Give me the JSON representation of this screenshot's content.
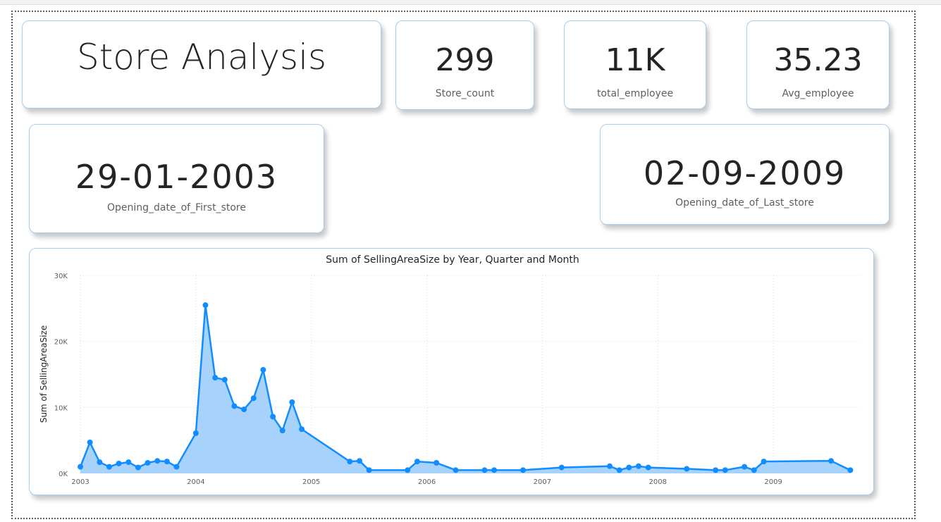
{
  "title": "Store Analysis",
  "kpis": {
    "store_count": {
      "value": "299",
      "label": "Store_count"
    },
    "total_employee": {
      "value": "11K",
      "label": "total_employee"
    },
    "avg_employee": {
      "value": "35.23",
      "label": "Avg_employee"
    }
  },
  "dates": {
    "first": {
      "value": "29-01-2003",
      "label": "Opening_date_of_First_store"
    },
    "last": {
      "value": "02-09-2009",
      "label": "Opening_date_of_Last_store"
    }
  },
  "colors": {
    "accent": "#118dff",
    "fill": "#a6d2fb",
    "border": "#a9cdf0"
  },
  "chart_data": {
    "type": "area",
    "title": "Sum of SellingAreaSize by Year, Quarter and Month",
    "ylabel": "Sum of SellingAreaSize",
    "xlabel": "",
    "ylim": [
      0,
      30000
    ],
    "yticks": [
      0,
      10000,
      20000,
      30000
    ],
    "ytick_labels": [
      "0K",
      "10K",
      "20K",
      "30K"
    ],
    "xlim": [
      2003.0,
      2009.75
    ],
    "xticks": [
      2003,
      2004,
      2005,
      2006,
      2007,
      2008,
      2009
    ],
    "xtick_labels": [
      "2003",
      "2004",
      "2005",
      "2006",
      "2007",
      "2008",
      "2009"
    ],
    "grid": true,
    "series": [
      {
        "x": [
          2003.0,
          2003.083,
          2003.167,
          2003.25,
          2003.333,
          2003.417,
          2003.5,
          2003.583,
          2003.667,
          2003.75,
          2003.833,
          2004.0,
          2004.083,
          2004.167,
          2004.25,
          2004.333,
          2004.417,
          2004.5,
          2004.583,
          2004.667,
          2004.75,
          2004.833,
          2004.917,
          2005.333,
          2005.417,
          2005.5,
          2005.833,
          2005.917,
          2006.083,
          2006.25,
          2006.5,
          2006.583,
          2006.833,
          2007.167,
          2007.583,
          2007.667,
          2007.75,
          2007.833,
          2007.917,
          2008.25,
          2008.5,
          2008.583,
          2008.75,
          2008.833,
          2008.917,
          2009.5,
          2009.667
        ],
        "values": [
          1000,
          4700,
          1700,
          1000,
          1500,
          1700,
          900,
          1600,
          1900,
          1800,
          1000,
          6100,
          25500,
          14500,
          14200,
          10200,
          9700,
          11400,
          15700,
          8600,
          6500,
          10800,
          6700,
          1800,
          1900,
          500,
          500,
          1800,
          1600,
          500,
          500,
          500,
          500,
          900,
          1100,
          500,
          900,
          1100,
          900,
          700,
          500,
          500,
          1000,
          500,
          1800,
          1900,
          500
        ]
      }
    ]
  }
}
